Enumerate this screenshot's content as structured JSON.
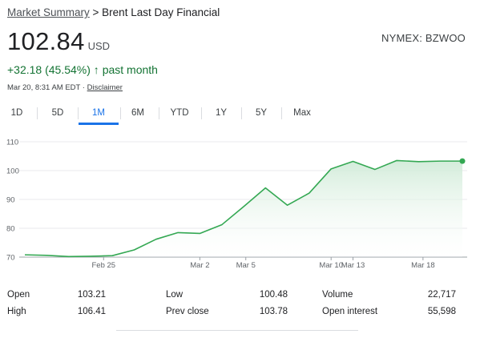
{
  "breadcrumb": {
    "root": "Market Summary",
    "separator": " > ",
    "current": "Brent Last Day Financial"
  },
  "quote": {
    "price": "102.84",
    "currency": "USD",
    "exchange": "NYMEX: BZWOO"
  },
  "change": {
    "value": "+32.18 (45.54%)",
    "arrow": "↑",
    "period": "past month",
    "color": "#137333"
  },
  "timestamp": {
    "text": "Mar 20, 8:31 AM EDT · ",
    "disclaimer": "Disclaimer"
  },
  "tabs": [
    {
      "label": "1D",
      "active": false
    },
    {
      "label": "5D",
      "active": false
    },
    {
      "label": "1M",
      "active": true
    },
    {
      "label": "6M",
      "active": false
    },
    {
      "label": "YTD",
      "active": false
    },
    {
      "label": "1Y",
      "active": false
    },
    {
      "label": "5Y",
      "active": false
    },
    {
      "label": "Max",
      "active": false
    }
  ],
  "chart_data": {
    "type": "area",
    "x": [
      "Feb 20",
      "Feb 21",
      "Feb 22",
      "Feb 23",
      "Feb 24",
      "Feb 27",
      "Feb 28",
      "Mar 1",
      "Mar 2",
      "Mar 3",
      "Mar 6",
      "Mar 7",
      "Mar 8",
      "Mar 9",
      "Mar 10",
      "Mar 13",
      "Mar 14",
      "Mar 15",
      "Mar 16",
      "Mar 17",
      "Mar 20"
    ],
    "x_tick_labels": [
      "Feb 25",
      "Mar 2",
      "Mar 5",
      "Mar 10",
      "Mar 13",
      "Mar 18"
    ],
    "y_ticks": [
      70,
      80,
      90,
      100,
      110
    ],
    "ylim": [
      70,
      110
    ],
    "series": [
      {
        "values": [
          70.8,
          70.6,
          70.2,
          70.3,
          70.5,
          72.5,
          76.2,
          78.5,
          78.2,
          81.2,
          87.5,
          94.0,
          88.0,
          92.2,
          100.6,
          103.2,
          100.4,
          103.5,
          103.1,
          103.3,
          103.3
        ]
      }
    ],
    "last_point_marker": true,
    "grid": true,
    "line_color": "#34a853",
    "fill_color": "#e6f4ea"
  },
  "stats": {
    "col1": [
      {
        "label": "Open",
        "value": "103.21"
      },
      {
        "label": "High",
        "value": "106.41"
      }
    ],
    "col2": [
      {
        "label": "Low",
        "value": "100.48"
      },
      {
        "label": "Prev close",
        "value": "103.78"
      }
    ],
    "col3": [
      {
        "label": "Volume",
        "value": "22,717"
      },
      {
        "label": "Open interest",
        "value": "55,598"
      }
    ]
  }
}
